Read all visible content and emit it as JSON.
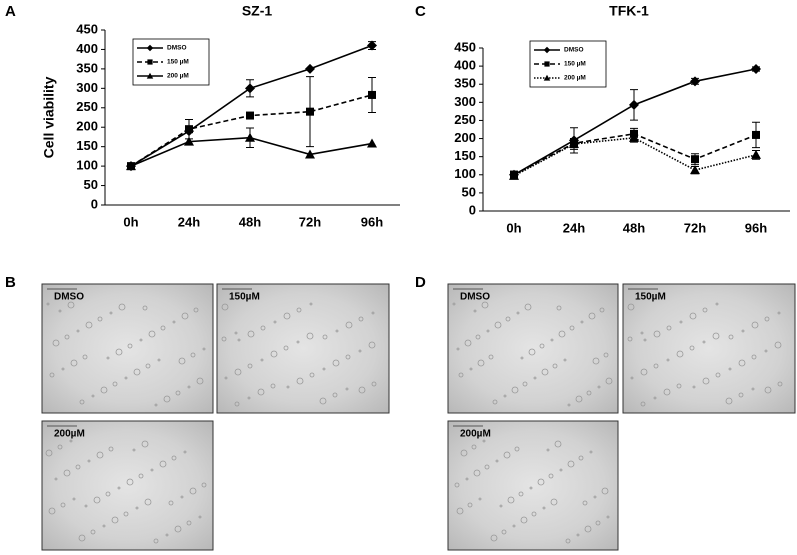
{
  "chart_data": [
    {
      "type": "line",
      "title": "SZ-1",
      "y_label": "Cell viability",
      "categories": [
        "0h",
        "24h",
        "48h",
        "72h",
        "96h"
      ],
      "ylim": [
        0,
        450
      ],
      "yticks": [
        0,
        50,
        100,
        150,
        200,
        250,
        300,
        350,
        400,
        450
      ],
      "series": [
        {
          "name": "DMSO",
          "color": "#000000",
          "line_style": "solid",
          "marker": "diamond",
          "values": [
            100,
            190,
            300,
            350,
            410
          ],
          "errors": [
            null,
            null,
            22,
            null,
            10
          ]
        },
        {
          "name": "150 µM",
          "color": "#000000",
          "line_style": "dashed",
          "marker": "square",
          "values": [
            100,
            195,
            230,
            240,
            283
          ],
          "errors": [
            null,
            25,
            null,
            90,
            45
          ]
        },
        {
          "name": "200 µM",
          "color": "#000000",
          "line_style": "solid",
          "marker": "triangle",
          "values": [
            100,
            163,
            173,
            130,
            158
          ],
          "errors": [
            null,
            null,
            25,
            null,
            null
          ]
        }
      ]
    },
    {
      "type": "line",
      "title": "TFK-1",
      "categories": [
        "0h",
        "24h",
        "48h",
        "72h",
        "96h"
      ],
      "ylim": [
        0,
        450
      ],
      "yticks": [
        0,
        50,
        100,
        150,
        200,
        250,
        300,
        350,
        400,
        450
      ],
      "series": [
        {
          "name": "DMSO",
          "color": "#000000",
          "line_style": "solid",
          "marker": "diamond",
          "values": [
            100,
            195,
            293,
            358,
            392
          ],
          "errors": [
            10,
            35,
            42,
            8,
            6
          ]
        },
        {
          "name": "150 µM",
          "color": "#000000",
          "line_style": "dashed",
          "marker": "square",
          "values": [
            100,
            187,
            213,
            143,
            210
          ],
          "errors": [
            8,
            12,
            15,
            15,
            35
          ]
        },
        {
          "name": "200 µM",
          "color": "#000000",
          "line_style": "dotted",
          "marker": "triangle",
          "values": [
            97,
            185,
            202,
            113,
            155
          ],
          "errors": [
            8,
            15,
            12,
            10,
            12
          ]
        }
      ]
    }
  ],
  "panels": [
    {
      "label": "A"
    },
    {
      "label": "B",
      "images": [
        "DMSO",
        "150µM",
        "200µM"
      ]
    },
    {
      "label": "C"
    },
    {
      "label": "D",
      "images": [
        "DMSO",
        "150µM",
        "200µM"
      ]
    }
  ]
}
